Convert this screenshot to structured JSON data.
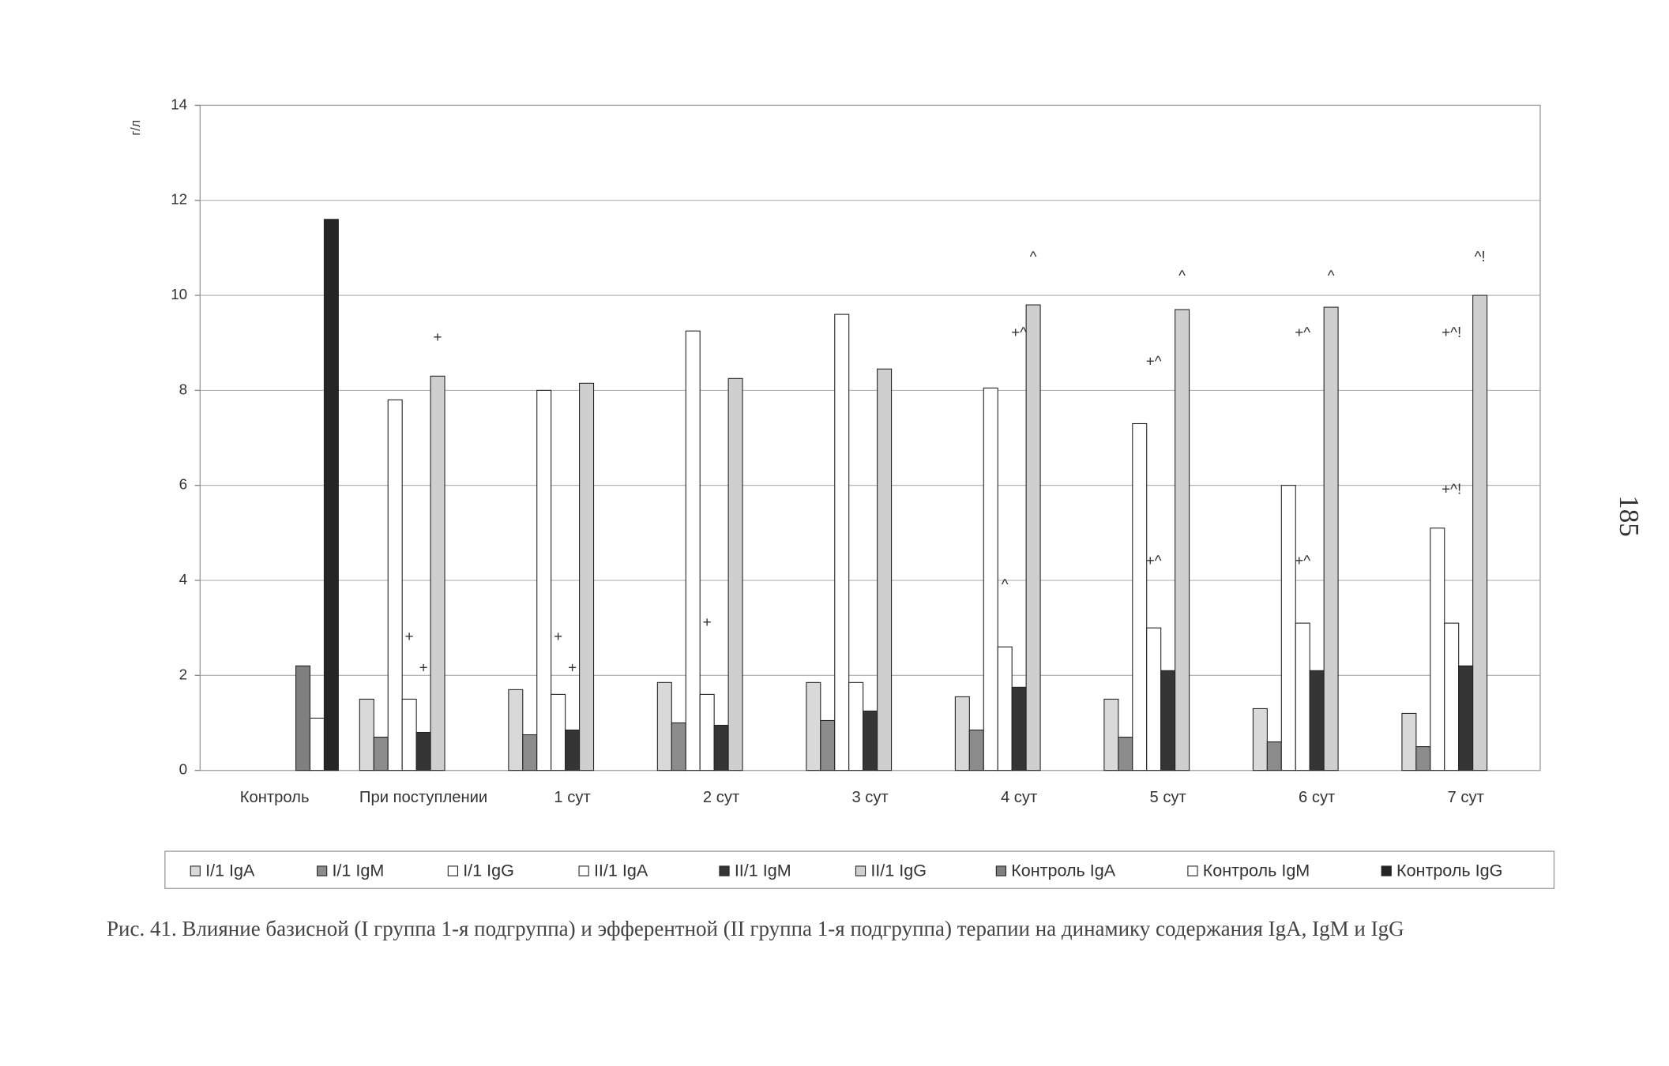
{
  "chart_data": {
    "type": "bar",
    "y_label": "г/л",
    "categories": [
      "Контроль",
      "При поступлении",
      "1 сут",
      "2 сут",
      "3 сут",
      "4 сут",
      "5 сут",
      "6 сут",
      "7 сут"
    ],
    "series": [
      {
        "name": "I/1 IgA",
        "color": "#d9d9d9",
        "values": [
          null,
          1.5,
          1.7,
          1.85,
          1.85,
          1.55,
          1.5,
          1.3,
          1.2
        ]
      },
      {
        "name": "I/1 IgM",
        "color": "#8c8c8c",
        "values": [
          null,
          0.7,
          0.75,
          1.0,
          1.05,
          0.85,
          0.7,
          0.6,
          0.5
        ]
      },
      {
        "name": "I/1 IgG",
        "color": "#ffffff",
        "values": [
          null,
          7.8,
          8.0,
          9.25,
          9.6,
          8.05,
          7.3,
          6.0,
          5.1
        ]
      },
      {
        "name": "II/1 IgA",
        "color": "#ffffff",
        "values": [
          null,
          1.5,
          1.6,
          1.6,
          1.85,
          2.6,
          3.0,
          3.1,
          3.1
        ]
      },
      {
        "name": "II/1 IgM",
        "color": "#353535",
        "values": [
          null,
          0.8,
          0.85,
          0.95,
          1.25,
          1.75,
          2.1,
          2.1,
          2.2
        ]
      },
      {
        "name": "II/1 IgG",
        "color": "#cfcfcf",
        "values": [
          null,
          8.3,
          8.15,
          8.25,
          8.45,
          9.8,
          9.7,
          9.75,
          10.0
        ]
      },
      {
        "name": "Контроль IgA",
        "color": "#7f7f7f",
        "values": [
          2.2,
          null,
          null,
          null,
          null,
          null,
          null,
          null,
          null
        ]
      },
      {
        "name": "Контроль IgM",
        "color": "#ffffff",
        "values": [
          1.1,
          null,
          null,
          null,
          null,
          null,
          null,
          null,
          null
        ]
      },
      {
        "name": "Контроль IgG",
        "color": "#252525",
        "values": [
          11.6,
          null,
          null,
          null,
          null,
          null,
          null,
          null,
          null
        ]
      }
    ],
    "annotations": [
      {
        "text": "+",
        "category": "При поступлении",
        "series": "II/1 IgA",
        "y": 2.8
      },
      {
        "text": "+",
        "category": "При поступлении",
        "series": "II/1 IgM",
        "y": 2.15
      },
      {
        "text": "+",
        "category": "При поступлении",
        "series": "II/1 IgG",
        "y": 9.1
      },
      {
        "text": "+",
        "category": "1 сут",
        "series": "II/1 IgA",
        "y": 2.8
      },
      {
        "text": "+",
        "category": "1 сут",
        "series": "II/1 IgM",
        "y": 2.15
      },
      {
        "text": "+",
        "category": "2 сут",
        "series": "II/1 IgA",
        "y": 3.1
      },
      {
        "text": "^",
        "category": "4 сут",
        "series": "II/1 IgA",
        "y": 3.9
      },
      {
        "text": "+^",
        "category": "4 сут",
        "series": "II/1 IgM",
        "y": 9.2
      },
      {
        "text": "^",
        "category": "4 сут",
        "series": "II/1 IgG",
        "y": 10.8
      },
      {
        "text": "+^",
        "category": "5 сут",
        "series": "II/1 IgA",
        "y": 8.6
      },
      {
        "text": "+^",
        "category": "5 сут",
        "series": "II/1 IgA",
        "y": 4.4
      },
      {
        "text": "^",
        "category": "5 сут",
        "series": "II/1 IgG",
        "y": 10.4
      },
      {
        "text": "+^",
        "category": "6 сут",
        "series": "II/1 IgA",
        "y": 9.2
      },
      {
        "text": "+^",
        "category": "6 сут",
        "series": "II/1 IgA",
        "y": 4.4
      },
      {
        "text": "^",
        "category": "6 сут",
        "series": "II/1 IgG",
        "y": 10.4
      },
      {
        "text": "+^!",
        "category": "7 сут",
        "series": "II/1 IgA",
        "y": 9.2
      },
      {
        "text": "+^!",
        "category": "7 сут",
        "series": "II/1 IgA",
        "y": 5.9
      },
      {
        "text": "^!",
        "category": "7 сут",
        "series": "II/1 IgG",
        "y": 10.8
      }
    ],
    "ylim": [
      0,
      14
    ],
    "yticks": [
      0,
      2,
      4,
      6,
      8,
      10,
      12,
      14
    ],
    "grid": true,
    "legend": "bottom"
  },
  "caption": "Рис. 41. Влияние базисной (I группа 1-я подгруппа) и эфферентной (II группа 1-я подгруппа) терапии на динамику содержания IgA, IgM и IgG",
  "page_number": "185"
}
